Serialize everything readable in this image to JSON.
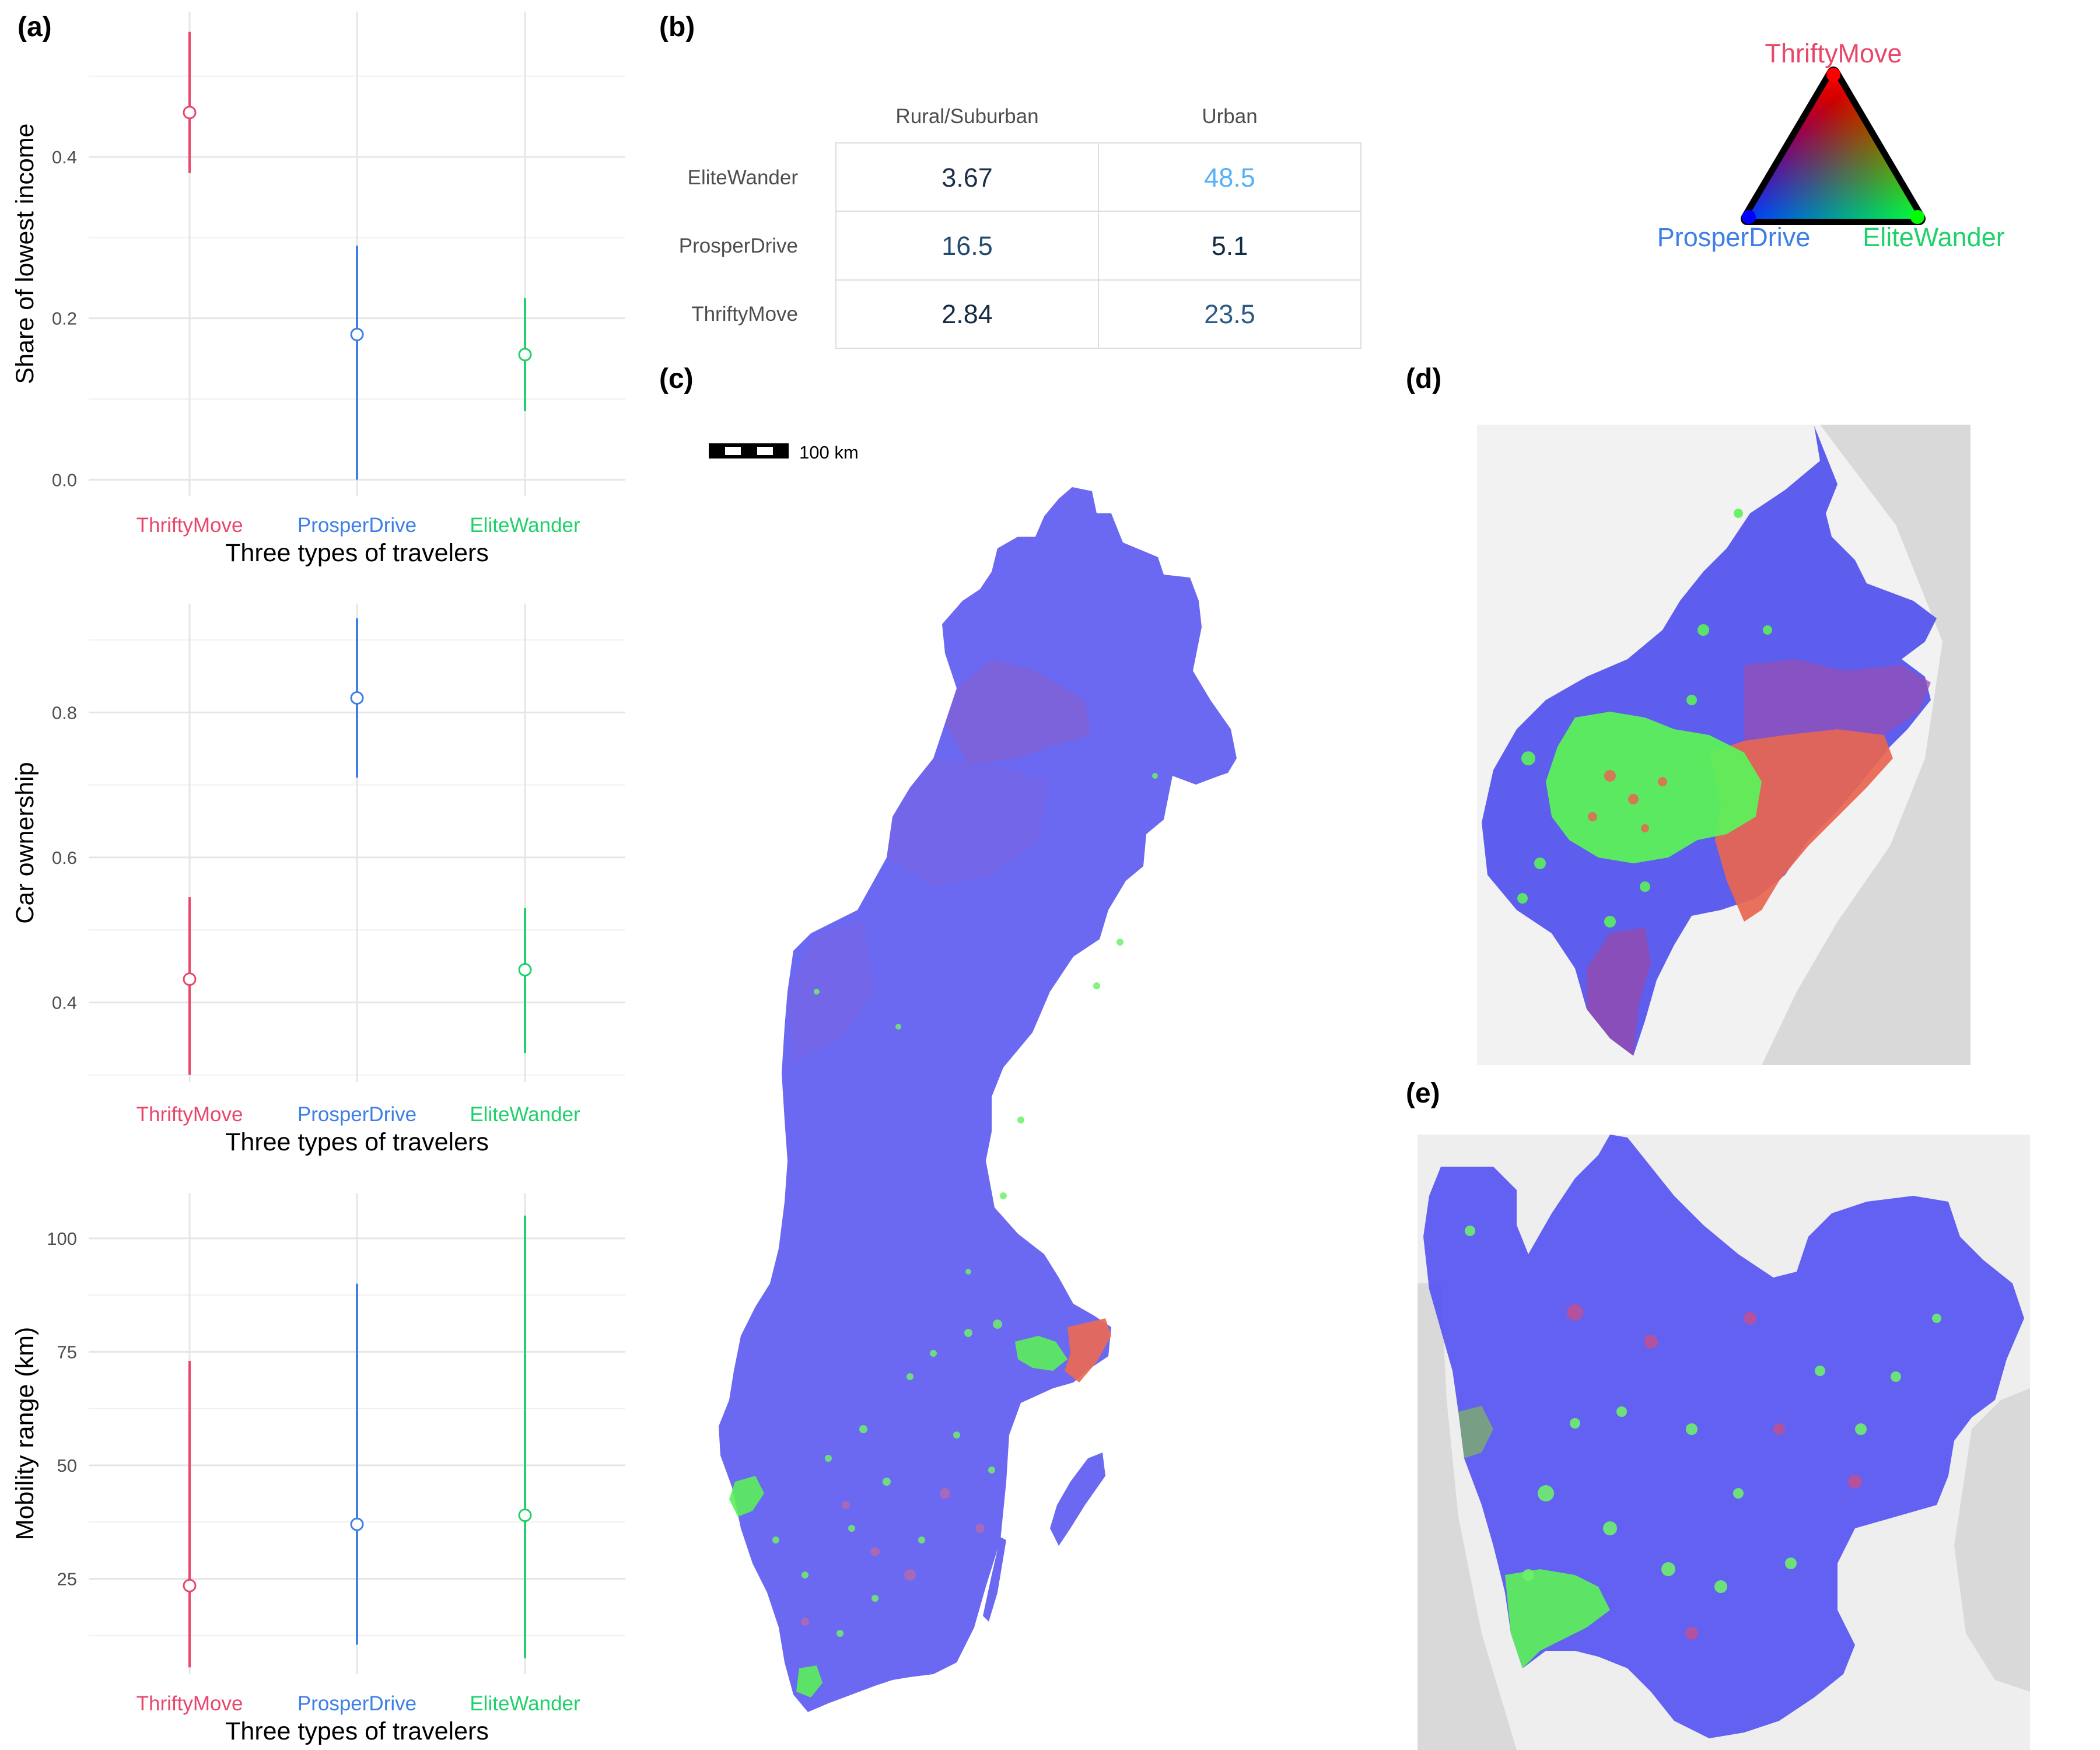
{
  "panels": {
    "a": "(a)",
    "b": "(b)",
    "c": "(c)",
    "d": "(d)",
    "e": "(e)"
  },
  "colors": {
    "ThriftyMove": "#e8476b",
    "ProsperDrive": "#3d7fe6",
    "EliteWander": "#1fd16a"
  },
  "chart_data": [
    {
      "type": "scatter",
      "subtype": "point-range",
      "xlabel": "Three types of travelers",
      "ylabel": "Share of lowest income",
      "categories": [
        "ThriftyMove",
        "ProsperDrive",
        "EliteWander"
      ],
      "values": [
        0.455,
        0.18,
        0.155
      ],
      "lower": [
        0.38,
        0.0,
        0.085
      ],
      "upper": [
        0.555,
        0.29,
        0.225
      ],
      "yticks": [
        0.0,
        0.2,
        0.4
      ],
      "ytick_labels": [
        "0.0",
        "0.2",
        "0.4"
      ],
      "ylim": [
        -0.02,
        0.58
      ],
      "grid": true
    },
    {
      "type": "scatter",
      "subtype": "point-range",
      "xlabel": "Three types of travelers",
      "ylabel": "Car ownership",
      "categories": [
        "ThriftyMove",
        "ProsperDrive",
        "EliteWander"
      ],
      "values": [
        0.432,
        0.82,
        0.445
      ],
      "lower": [
        0.3,
        0.71,
        0.33
      ],
      "upper": [
        0.545,
        0.93,
        0.53
      ],
      "yticks": [
        0.4,
        0.6,
        0.8
      ],
      "ytick_labels": [
        "0.4",
        "0.6",
        "0.8"
      ],
      "ylim": [
        0.29,
        0.95
      ],
      "grid": true
    },
    {
      "type": "scatter",
      "subtype": "point-range",
      "xlabel": "Three types of travelers",
      "ylabel": "Mobility range (km)",
      "categories": [
        "ThriftyMove",
        "ProsperDrive",
        "EliteWander"
      ],
      "values": [
        23.5,
        37,
        39
      ],
      "lower": [
        5.5,
        10.5,
        7.5
      ],
      "upper": [
        73,
        90,
        105
      ],
      "yticks": [
        25,
        50,
        75,
        100
      ],
      "ytick_labels": [
        "25",
        "50",
        "75",
        "100"
      ],
      "ylim": [
        4,
        110
      ],
      "grid": true
    },
    {
      "type": "table",
      "columns": [
        "Rural/Suburban",
        "Urban"
      ],
      "rows": [
        "EliteWander",
        "ProsperDrive",
        "ThriftyMove"
      ],
      "values": [
        [
          "3.67",
          "48.5"
        ],
        [
          "16.5",
          "5.1"
        ],
        [
          "2.84",
          "23.5"
        ]
      ],
      "value_colors": [
        [
          "#1c2f4a",
          "#56b1f7"
        ],
        [
          "#244a6e",
          "#132b43"
        ],
        [
          "#132b43",
          "#2b5a85"
        ]
      ]
    }
  ],
  "ternary": {
    "top": "ThriftyMove",
    "left": "ProsperDrive",
    "right": "EliteWander"
  },
  "scalebar": "100 km"
}
